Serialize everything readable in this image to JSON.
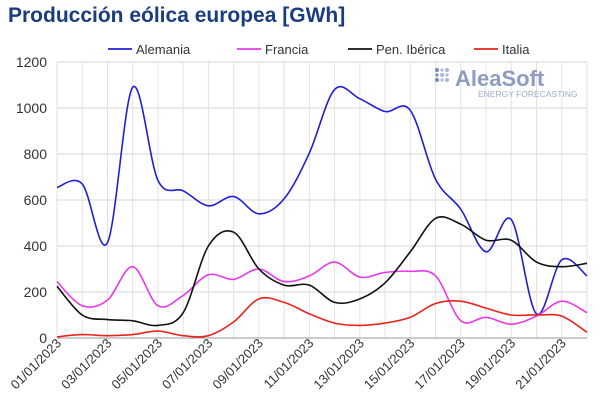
{
  "chart_data": {
    "type": "line",
    "title": "Producción eólica europea [GWh]",
    "xlabel": "",
    "ylabel": "",
    "ylim": [
      0,
      1200
    ],
    "yticks": [
      0,
      200,
      400,
      600,
      800,
      1000,
      1200
    ],
    "grid": true,
    "legend_position": "top",
    "x_days": [
      1,
      2,
      3,
      4,
      5,
      6,
      7,
      8,
      9,
      10,
      11,
      12,
      13,
      14,
      15,
      16,
      17,
      18,
      19,
      20,
      21,
      22
    ],
    "xtick_labels": [
      "01/01/2023",
      "03/01/2023",
      "05/01/2023",
      "07/01/2023",
      "09/01/2023",
      "11/01/2023",
      "13/01/2023",
      "15/01/2023",
      "17/01/2023",
      "19/01/2023",
      "21/01/2023"
    ],
    "series": [
      {
        "name": "Alemania",
        "color": "#1f1fd6",
        "values": [
          655,
          670,
          415,
          1090,
          685,
          640,
          575,
          615,
          540,
          605,
          805,
          1080,
          1040,
          985,
          990,
          690,
          560,
          375,
          515,
          105,
          340,
          270
        ]
      },
      {
        "name": "Francia",
        "color": "#e839e8",
        "values": [
          245,
          140,
          165,
          310,
          140,
          185,
          275,
          255,
          300,
          245,
          270,
          330,
          265,
          285,
          290,
          270,
          75,
          90,
          60,
          95,
          160,
          110
        ]
      },
      {
        "name": "Pen. Ibérica",
        "color": "#111111",
        "values": [
          225,
          100,
          80,
          75,
          55,
          110,
          400,
          460,
          300,
          230,
          230,
          155,
          170,
          240,
          375,
          520,
          495,
          425,
          425,
          330,
          310,
          325
        ]
      },
      {
        "name": "Italia",
        "color": "#e8241c",
        "values": [
          5,
          15,
          10,
          15,
          30,
          10,
          10,
          70,
          170,
          155,
          105,
          65,
          55,
          65,
          90,
          150,
          160,
          130,
          100,
          100,
          95,
          25
        ]
      }
    ]
  },
  "logo": {
    "name": "AleaSoft",
    "tagline": "ENERGY FORECASTING"
  }
}
